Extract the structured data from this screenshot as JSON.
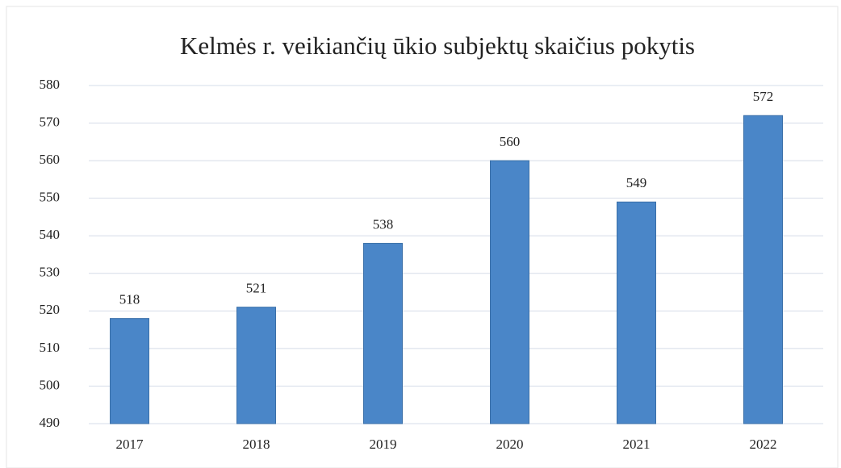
{
  "chart_data": {
    "type": "bar",
    "title": "Kelmės r. veikiančių ūkio subjektų skaičius pokytis",
    "categories": [
      "2017",
      "2018",
      "2019",
      "2020",
      "2021",
      "2022"
    ],
    "values": [
      518,
      521,
      538,
      560,
      549,
      572
    ],
    "color": "#4a86c8",
    "ylim": [
      490,
      580
    ],
    "yticks": [
      490,
      500,
      510,
      520,
      530,
      540,
      550,
      560,
      570,
      580
    ],
    "grid": true
  }
}
